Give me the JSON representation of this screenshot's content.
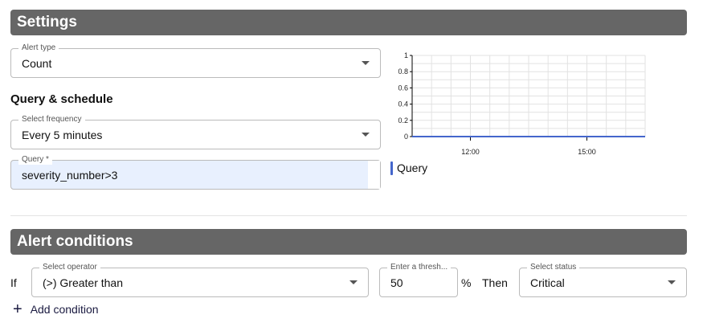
{
  "settings": {
    "title": "Settings",
    "alert_type": {
      "label": "Alert type",
      "value": "Count"
    },
    "query_schedule_heading": "Query & schedule",
    "frequency": {
      "label": "Select frequency",
      "value": "Every 5 minutes"
    },
    "query": {
      "label": "Query *",
      "value": "severity_number>3"
    }
  },
  "chart_data": {
    "type": "line",
    "x_tick_labels": [
      "12:00",
      "15:00"
    ],
    "y_tick_labels": [
      "0",
      "0.2",
      "0.4",
      "0.6",
      "0.8",
      "1"
    ],
    "ylim": [
      0,
      1
    ],
    "xlim": [
      "10:30",
      "16:30"
    ],
    "grid": true,
    "series": [
      {
        "name": "Query",
        "color": "#4466cc",
        "x": [
          "10:30",
          "16:30"
        ],
        "values": [
          0,
          0
        ]
      }
    ],
    "legend": "bottom-left"
  },
  "conditions": {
    "title": "Alert conditions",
    "if_label": "If",
    "operator": {
      "label": "Select operator",
      "value": "(>) Greater than"
    },
    "threshold": {
      "label": "Enter a thresh...",
      "value": "50"
    },
    "unit": "%",
    "then_label": "Then",
    "status": {
      "label": "Select status",
      "value": "Critical"
    },
    "add_condition": "Add condition"
  }
}
